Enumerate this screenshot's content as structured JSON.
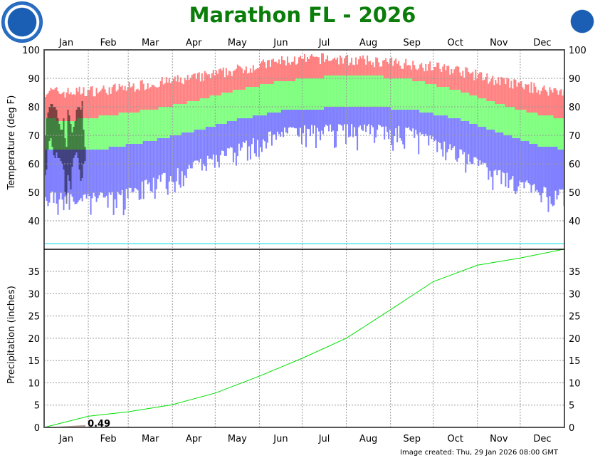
{
  "title": "Marathon FL - 2026",
  "credit": "Image created: Thu, 29 Jan 2026 08:00 GMT",
  "logos": {
    "left": "NOAA",
    "right": "NATIONAL WEATHER SERVICE"
  },
  "chart_data": [
    {
      "type": "bar",
      "ylabel": "Temperature (deg F)",
      "ylim": [
        30,
        100
      ],
      "yticks": [
        40,
        50,
        60,
        70,
        80,
        90,
        100
      ],
      "months": [
        "Jan",
        "Feb",
        "Mar",
        "Apr",
        "May",
        "Jun",
        "Jul",
        "Aug",
        "Sep",
        "Oct",
        "Nov",
        "Dec"
      ],
      "grid": true,
      "freezing_line": 32,
      "colors": {
        "record": "#ff8080",
        "normal": "#80ff80",
        "record_low": "#8080ff",
        "observed": "#000000",
        "freezing": "#00e0e0"
      },
      "monthly_record_high": [
        85,
        86,
        88,
        90,
        93,
        96,
        97,
        96,
        95,
        93,
        89,
        86
      ],
      "monthly_normal_high": [
        75,
        77,
        79,
        82,
        86,
        89,
        90.5,
        91,
        89.5,
        86,
        81,
        77
      ],
      "monthly_normal_low": [
        64.5,
        65.5,
        68,
        71.5,
        75.5,
        78.5,
        79.5,
        80,
        79,
        76,
        71,
        66
      ],
      "monthly_record_low": [
        47,
        47,
        52,
        58,
        64,
        70,
        71,
        71,
        70,
        63,
        55,
        49
      ],
      "observed_high": [
        70,
        76,
        78,
        80,
        81,
        81,
        80,
        80,
        79,
        76,
        74,
        72,
        72,
        76,
        69,
        66,
        79,
        77,
        74,
        71,
        73,
        75,
        79,
        80,
        80,
        79,
        82,
        72,
        66
      ],
      "observed_low": [
        56,
        58,
        65,
        68,
        69,
        66,
        63,
        62,
        64,
        62,
        62,
        61,
        60,
        58,
        50,
        46,
        56,
        54,
        51,
        59,
        62,
        63,
        64,
        62,
        58,
        54,
        55,
        60,
        61
      ]
    },
    {
      "type": "area",
      "ylabel": "Precipitation (inches)",
      "ylim": [
        0,
        40
      ],
      "yticks": [
        0,
        5,
        10,
        15,
        20,
        25,
        30,
        35
      ],
      "months": [
        "Jan",
        "Feb",
        "Mar",
        "Apr",
        "May",
        "Jun",
        "Jul",
        "Aug",
        "Sep",
        "Oct",
        "Nov",
        "Dec"
      ],
      "normal_cumulative_month_start": [
        0,
        2.5,
        3.5,
        5.1,
        7.7,
        11.5,
        15.5,
        20,
        26.4,
        32.7,
        36.4,
        38
      ],
      "normal_cumulative_year_end": 40,
      "observed_total": 0.49,
      "observed_label": "0.49",
      "observed_through_day": 29,
      "colors": {
        "normal": "#00e000",
        "observed": "#a08070"
      }
    }
  ]
}
